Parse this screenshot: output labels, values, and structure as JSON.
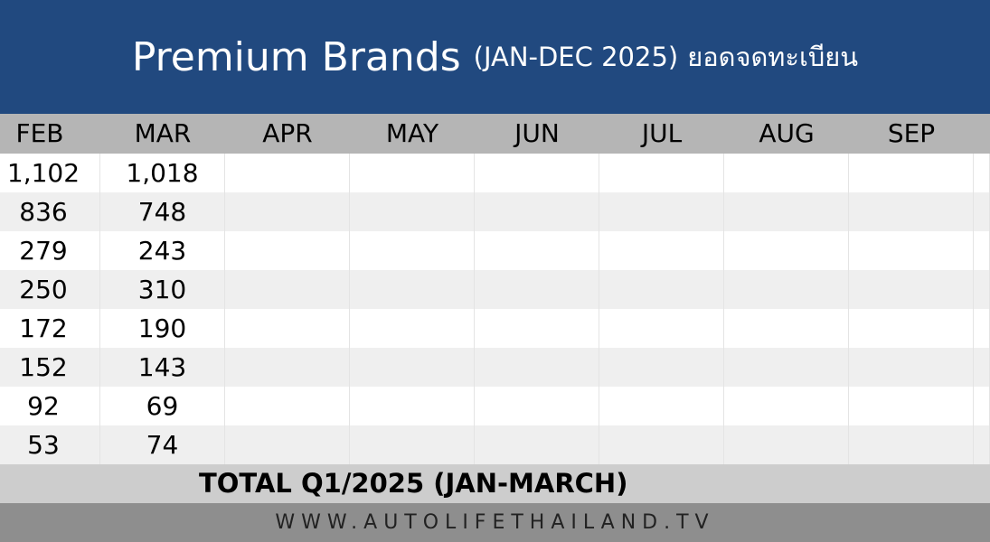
{
  "header": {
    "title_main": "Premium Brands",
    "title_sub": "(JAN-DEC 2025)",
    "title_thai": "ยอดจดทะเบียน"
  },
  "colors": {
    "header_bg": "#21497f",
    "column_header_bg": "#b5b5b5",
    "row_alt_bg": "#efefef",
    "total_bg": "#cdcdcd",
    "footer_bg": "#8e8e8e"
  },
  "chart_data": {
    "type": "table",
    "columns": [
      "FEB",
      "MAR",
      "APR",
      "MAY",
      "JUN",
      "JUL",
      "AUG",
      "SEP"
    ],
    "rows": [
      [
        "1,102",
        "1,018",
        "",
        "",
        "",
        "",
        "",
        ""
      ],
      [
        "836",
        "748",
        "",
        "",
        "",
        "",
        "",
        ""
      ],
      [
        "279",
        "243",
        "",
        "",
        "",
        "",
        "",
        ""
      ],
      [
        "250",
        "310",
        "",
        "",
        "",
        "",
        "",
        ""
      ],
      [
        "172",
        "190",
        "",
        "",
        "",
        "",
        "",
        ""
      ],
      [
        "152",
        "143",
        "",
        "",
        "",
        "",
        "",
        ""
      ],
      [
        "92",
        "69",
        "",
        "",
        "",
        "",
        "",
        ""
      ],
      [
        "53",
        "74",
        "",
        "",
        "",
        "",
        "",
        ""
      ]
    ]
  },
  "total": {
    "label": "TOTAL Q1/2025 (JAN-MARCH)"
  },
  "footer": {
    "text": "WWW.AUTOLIFETHAILAND.TV"
  }
}
